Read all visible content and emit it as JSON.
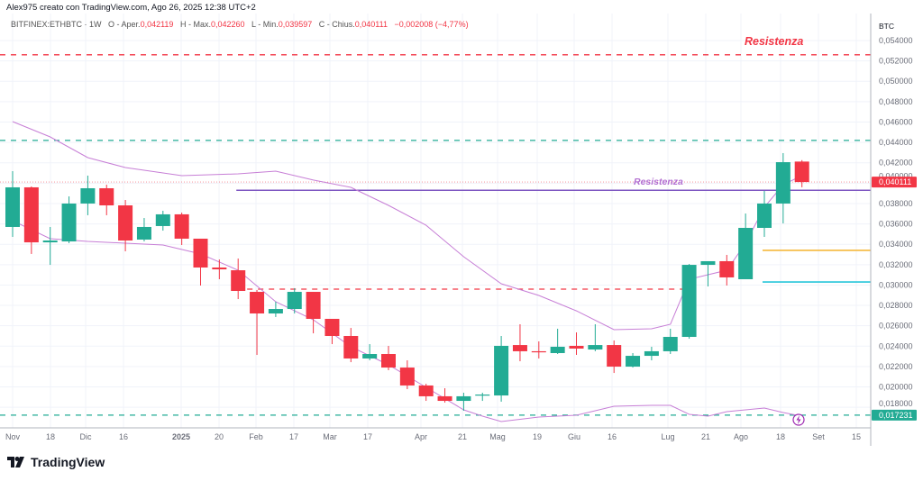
{
  "header": {
    "credit": "Alex975 creato con TradingView.com, Ago 26, 2025 12:38 UTC+2"
  },
  "legend": {
    "symbol": "BITFINEX:ETHBTC · 1W",
    "open_label": "O - Aper.",
    "open": "0,042119",
    "high_label": "H - Max.",
    "high": "0,042260",
    "low_label": "L - Min.",
    "low": "0,039597",
    "close_label": "C - Chius.",
    "close": "0,040111",
    "change": "−0,002008 (−4,77%)"
  },
  "price_axis": {
    "unit": "BTC",
    "ticks": [
      "0,054000",
      "0,052000",
      "0,050000",
      "0,048000",
      "0,046000",
      "0,044000",
      "0,042000",
      "0,040000",
      "0,038000",
      "0,036000",
      "0,034000",
      "0,032000",
      "0,030000",
      "0,028000",
      "0,026000",
      "0,024000",
      "0,022000",
      "0,020000",
      "0,018000"
    ],
    "last_price_label": "0,040111",
    "support_label": "0,017231"
  },
  "time_axis": {
    "ticks": [
      "Nov",
      "18",
      "Dic",
      "16",
      "2025",
      "20",
      "Feb",
      "17",
      "Mar",
      "17",
      "Apr",
      "21",
      "Mag",
      "19",
      "Giu",
      "16",
      "Lug",
      "21",
      "Ago",
      "18",
      "Set",
      "15"
    ]
  },
  "annotations": {
    "resistance_top_label": "Resistenza",
    "resistance_mid_label": "Resistenza"
  },
  "brand": {
    "logo_text": "TradingView"
  },
  "colors": {
    "up": "#22ab94",
    "down": "#f23645",
    "band": "#c77fd6",
    "resistance_top": "#f23645",
    "resistance_mid": "#7e57c2",
    "support": "#22ab94",
    "yellow_line": "#f5b83d",
    "cyan_line": "#26c6da"
  },
  "chart_data": {
    "type": "candlestick",
    "ylim": [
      0.017,
      0.0555
    ],
    "interval": "1W",
    "candles": [
      [
        0.0357,
        0.04118,
        0.03473,
        0.03959
      ],
      [
        0.03959,
        0.03968,
        0.03305,
        0.03419
      ],
      [
        0.03419,
        0.0357,
        0.03198,
        0.03437
      ],
      [
        0.03428,
        0.0387,
        0.03411,
        0.038
      ],
      [
        0.038,
        0.04074,
        0.03685,
        0.0395
      ],
      [
        0.0395,
        0.03985,
        0.03685,
        0.03782
      ],
      [
        0.03782,
        0.03835,
        0.03331,
        0.03437
      ],
      [
        0.03446,
        0.03658,
        0.03428,
        0.0357
      ],
      [
        0.03579,
        0.03729,
        0.03534,
        0.03694
      ],
      [
        0.03694,
        0.03711,
        0.03393,
        0.03455
      ],
      [
        0.03455,
        0.03455,
        0.02995,
        0.03172
      ],
      [
        0.03172,
        0.03251,
        0.03057,
        0.03154
      ],
      [
        0.03145,
        0.0326,
        0.02862,
        0.02942
      ],
      [
        0.02933,
        0.02951,
        0.02314,
        0.02721
      ],
      [
        0.02721,
        0.02836,
        0.02686,
        0.02765
      ],
      [
        0.02765,
        0.02969,
        0.02721,
        0.02933
      ],
      [
        0.02933,
        0.02933,
        0.02526,
        0.02668
      ],
      [
        0.02668,
        0.02668,
        0.0242,
        0.025
      ],
      [
        0.025,
        0.02579,
        0.02243,
        0.02279
      ],
      [
        0.02279,
        0.0242,
        0.02261,
        0.02323
      ],
      [
        0.02323,
        0.02403,
        0.02164,
        0.0219
      ],
      [
        0.0219,
        0.02261,
        0.01978,
        0.02014
      ],
      [
        0.02014,
        0.02031,
        0.01863,
        0.01908
      ],
      [
        0.01908,
        0.01987,
        0.01846,
        0.01863
      ],
      [
        0.01863,
        0.01943,
        0.01766,
        0.01908
      ],
      [
        0.01916,
        0.01943,
        0.01863,
        0.01925
      ],
      [
        0.01916,
        0.025,
        0.01855,
        0.02403
      ],
      [
        0.02411,
        0.02615,
        0.02252,
        0.0235
      ],
      [
        0.0235,
        0.02447,
        0.02279,
        0.02341
      ],
      [
        0.02332,
        0.02571,
        0.02323,
        0.02394
      ],
      [
        0.02403,
        0.02535,
        0.02314,
        0.02376
      ],
      [
        0.02367,
        0.02615,
        0.0235,
        0.02411
      ],
      [
        0.02411,
        0.02456,
        0.02137,
        0.02199
      ],
      [
        0.02199,
        0.02332,
        0.0219,
        0.02305
      ],
      [
        0.02305,
        0.02394,
        0.02261,
        0.0235
      ],
      [
        0.0235,
        0.02571,
        0.02323,
        0.02491
      ],
      [
        0.02491,
        0.03207,
        0.02473,
        0.03198
      ],
      [
        0.03198,
        0.03234,
        0.02986,
        0.03234
      ],
      [
        0.03234,
        0.03296,
        0.02995,
        0.03075
      ],
      [
        0.03057,
        0.03702,
        0.03057,
        0.03561
      ],
      [
        0.03561,
        0.03923,
        0.03473,
        0.038
      ],
      [
        0.038,
        0.04295,
        0.03605,
        0.04206
      ],
      [
        0.042119,
        0.04226,
        0.039597,
        0.040111
      ]
    ],
    "upper_band": [
      [
        0,
        0.04604
      ],
      [
        2,
        0.04454
      ],
      [
        4,
        0.04251
      ],
      [
        6,
        0.04153
      ],
      [
        9,
        0.04074
      ],
      [
        12,
        0.04091
      ],
      [
        14,
        0.04118
      ],
      [
        16,
        0.0403
      ],
      [
        18,
        0.03959
      ],
      [
        20,
        0.03782
      ],
      [
        22,
        0.03587
      ],
      [
        24,
        0.03278
      ],
      [
        26,
        0.03013
      ],
      [
        28,
        0.02898
      ],
      [
        30,
        0.02747
      ],
      [
        32,
        0.02562
      ],
      [
        34,
        0.02571
      ],
      [
        35,
        0.02615
      ],
      [
        36,
        0.03057
      ],
      [
        37,
        0.03101
      ],
      [
        38,
        0.03145
      ],
      [
        39,
        0.03411
      ],
      [
        40,
        0.03764
      ],
      [
        41,
        0.03985
      ],
      [
        42,
        0.04074
      ]
    ],
    "lower_band": [
      [
        0,
        0.03632
      ],
      [
        2,
        0.03455
      ],
      [
        4,
        0.03428
      ],
      [
        6,
        0.03411
      ],
      [
        8,
        0.03393
      ],
      [
        10,
        0.03305
      ],
      [
        12,
        0.03145
      ],
      [
        14,
        0.02836
      ],
      [
        16,
        0.02659
      ],
      [
        18,
        0.02394
      ],
      [
        20,
        0.02217
      ],
      [
        22,
        0.01996
      ],
      [
        24,
        0.01775
      ],
      [
        25,
        0.01713
      ],
      [
        26,
        0.0166
      ],
      [
        28,
        0.01704
      ],
      [
        30,
        0.01722
      ],
      [
        32,
        0.0181
      ],
      [
        34,
        0.01819
      ],
      [
        35,
        0.01819
      ],
      [
        36,
        0.01731
      ],
      [
        37,
        0.01713
      ],
      [
        38,
        0.01757
      ],
      [
        40,
        0.01793
      ],
      [
        41,
        0.01748
      ],
      [
        42,
        0.01713
      ]
    ],
    "horizontal_lines": [
      {
        "price": 0.0526,
        "style": "dashed",
        "color": "#f23645",
        "from_index": 0
      },
      {
        "price": 0.0442,
        "style": "dashed",
        "color": "#22ab94",
        "from_index": 0
      },
      {
        "price": 0.0393,
        "style": "solid",
        "color": "#7e57c2",
        "from_index": 12
      },
      {
        "price": 0.0296,
        "style": "dashed",
        "color": "#f23645",
        "from_index": 12,
        "to_index": 36
      },
      {
        "price": 0.0334,
        "style": "solid",
        "color": "#f5b83d",
        "from_index": 40
      },
      {
        "price": 0.0303,
        "style": "solid",
        "color": "#26c6da",
        "from_index": 40
      },
      {
        "price": 0.017231,
        "style": "dashed",
        "color": "#22ab94",
        "from_index": 0
      }
    ],
    "grid": true
  }
}
